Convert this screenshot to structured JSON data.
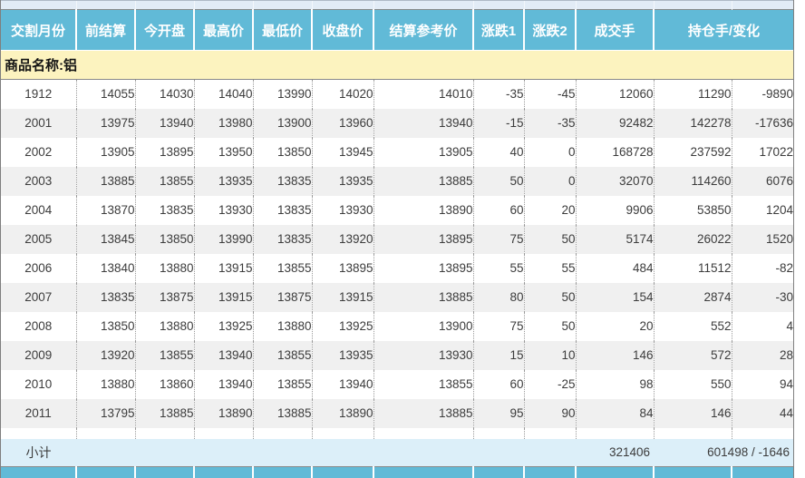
{
  "colors": {
    "header_bg": "#61BAD7",
    "header_text": "#ffffff",
    "product_bar_bg": "#FCF3BF",
    "row_alt_bg": "#F0F0F0",
    "subtotal_bg": "#DCEFF9",
    "top_strip_bg": "#E2ECF6",
    "data_text": "#3c3c3c"
  },
  "table": {
    "columns": [
      {
        "key": "delivery_month",
        "label": "交割月份",
        "colspan": 1
      },
      {
        "key": "prev_settle",
        "label": "前结算",
        "colspan": 1
      },
      {
        "key": "open",
        "label": "今开盘",
        "colspan": 1
      },
      {
        "key": "high",
        "label": "最高价",
        "colspan": 1
      },
      {
        "key": "low",
        "label": "最低价",
        "colspan": 1
      },
      {
        "key": "close",
        "label": "收盘价",
        "colspan": 1
      },
      {
        "key": "settle_ref",
        "label": "结算参考价",
        "colspan": 1
      },
      {
        "key": "change1",
        "label": "涨跌1",
        "colspan": 1
      },
      {
        "key": "change2",
        "label": "涨跌2",
        "colspan": 1
      },
      {
        "key": "volume",
        "label": "成交手",
        "colspan": 1
      },
      {
        "key": "oi_and_change",
        "label": "持仓手/变化",
        "colspan": 2
      }
    ],
    "product_label": "商品名称:铝",
    "rows": [
      {
        "month": "1912",
        "values": [
          "14055",
          "14030",
          "14040",
          "13990",
          "14020",
          "14010",
          "-35",
          "-45",
          "12060",
          "11290",
          "-9890"
        ]
      },
      {
        "month": "2001",
        "values": [
          "13975",
          "13940",
          "13980",
          "13900",
          "13960",
          "13940",
          "-15",
          "-35",
          "92482",
          "142278",
          "-17636"
        ]
      },
      {
        "month": "2002",
        "values": [
          "13905",
          "13895",
          "13950",
          "13850",
          "13945",
          "13905",
          "40",
          "0",
          "168728",
          "237592",
          "17022"
        ]
      },
      {
        "month": "2003",
        "values": [
          "13885",
          "13855",
          "13935",
          "13835",
          "13935",
          "13885",
          "50",
          "0",
          "32070",
          "114260",
          "6076"
        ]
      },
      {
        "month": "2004",
        "values": [
          "13870",
          "13835",
          "13930",
          "13835",
          "13930",
          "13890",
          "60",
          "20",
          "9906",
          "53850",
          "1204"
        ]
      },
      {
        "month": "2005",
        "values": [
          "13845",
          "13850",
          "13990",
          "13835",
          "13920",
          "13895",
          "75",
          "50",
          "5174",
          "26022",
          "1520"
        ]
      },
      {
        "month": "2006",
        "values": [
          "13840",
          "13880",
          "13915",
          "13855",
          "13895",
          "13895",
          "55",
          "55",
          "484",
          "11512",
          "-82"
        ]
      },
      {
        "month": "2007",
        "values": [
          "13835",
          "13875",
          "13915",
          "13875",
          "13915",
          "13885",
          "80",
          "50",
          "154",
          "2874",
          "-30"
        ]
      },
      {
        "month": "2008",
        "values": [
          "13850",
          "13880",
          "13925",
          "13880",
          "13925",
          "13900",
          "75",
          "50",
          "20",
          "552",
          "4"
        ]
      },
      {
        "month": "2009",
        "values": [
          "13920",
          "13855",
          "13940",
          "13855",
          "13935",
          "13930",
          "15",
          "10",
          "146",
          "572",
          "28"
        ]
      },
      {
        "month": "2010",
        "values": [
          "13880",
          "13860",
          "13940",
          "13855",
          "13940",
          "13855",
          "60",
          "-25",
          "98",
          "550",
          "94"
        ]
      },
      {
        "month": "2011",
        "values": [
          "13795",
          "13885",
          "13890",
          "13885",
          "13890",
          "13885",
          "95",
          "90",
          "84",
          "146",
          "44"
        ]
      }
    ],
    "subtotal": {
      "label": "小计",
      "volume": "321406",
      "oi_and_change": "601498 / -1646"
    }
  }
}
